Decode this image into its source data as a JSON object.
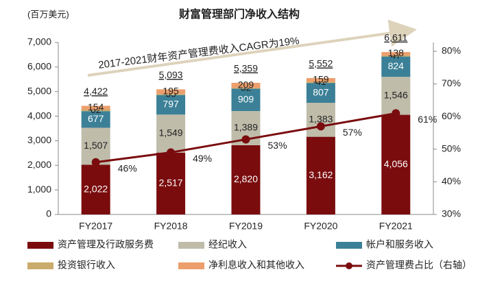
{
  "chart_data": {
    "type": "stacked_bar_line",
    "title": "财富管理部门净收入结构",
    "y_label": "(百万美元)",
    "annotation": "2017-2021财年资产管理费收入CAGR为19%",
    "categories": [
      "FY2017",
      "FY2018",
      "FY2019",
      "FY2020",
      "FY2021"
    ],
    "ylim": [
      0,
      7000
    ],
    "yticks": [
      0,
      {
        "value": 1000,
        "label": "1,000"
      },
      {
        "value": 2000,
        "label": "2,000"
      },
      {
        "value": 3000,
        "label": "3,000"
      },
      {
        "value": 4000,
        "label": "4,000"
      },
      {
        "value": 5000,
        "label": "5,000"
      },
      {
        "value": 6000,
        "label": "6,000"
      },
      {
        "value": 7000,
        "label": "7,000"
      }
    ],
    "y2lim": [
      30,
      82.7
    ],
    "y2ticks": [
      {
        "value": 30,
        "label": "30%"
      },
      {
        "value": 40,
        "label": "40%"
      },
      {
        "value": 50,
        "label": "50%"
      },
      {
        "value": 60,
        "label": "60%"
      },
      {
        "value": 70,
        "label": "70%"
      },
      {
        "value": 80,
        "label": "80%"
      }
    ],
    "series": [
      {
        "name": "资产管理及行政服务费",
        "color": "#7a0c0e",
        "label_color": "#ffffff",
        "values": [
          2022,
          2517,
          2820,
          3162,
          4056
        ],
        "value_labels": [
          "2,022",
          "2,517",
          "2,820",
          "3,162",
          "4,056"
        ]
      },
      {
        "name": "经纪收入",
        "color": "#bfbcaa",
        "label_color": "#222222",
        "values": [
          1507,
          1549,
          1389,
          1383,
          1546
        ],
        "value_labels": [
          "1,507",
          "1,549",
          "1,389",
          "1,383",
          "1,546"
        ]
      },
      {
        "name": "帐户和服务收入",
        "color": "#3b8097",
        "label_color": "#ffffff",
        "values": [
          677,
          797,
          909,
          807,
          824
        ]
      },
      {
        "name": "投资银行收入",
        "color": "#c9ab6b",
        "label_color": "#222222",
        "values": [
          62,
          35,
          32,
          41,
          47
        ]
      },
      {
        "name": "净利息收入和其他收入",
        "color": "#ec9f6c",
        "label_color": "#222222",
        "values": [
          154,
          195,
          209,
          159,
          138
        ]
      },
      {
        "name": "资产管理费占比（右轴）",
        "color": "#7a0c0e",
        "axis": "y2",
        "type": "line",
        "values": [
          46,
          49,
          53,
          57,
          61
        ],
        "value_labels": [
          "46%",
          "49%",
          "53%",
          "57%",
          "61%"
        ]
      }
    ],
    "totals": {
      "values": [
        4422,
        5093,
        5359,
        5552,
        6611
      ],
      "value_labels": [
        "4,422",
        "5,093",
        "5,359",
        "5,552",
        "6,611"
      ]
    }
  }
}
